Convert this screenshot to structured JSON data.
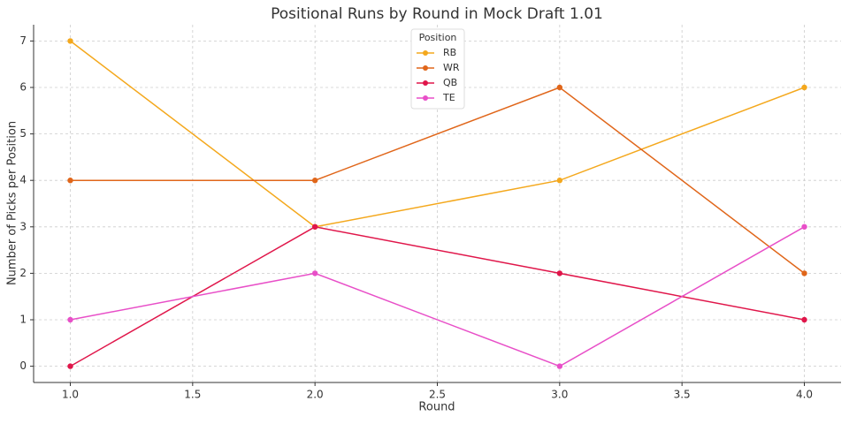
{
  "chart_data": {
    "type": "line",
    "title": "Positional Runs by Round in Mock Draft 1.01",
    "x_label": "Round",
    "y_label": "Number of Picks per Position",
    "x": [
      1,
      2,
      3,
      4
    ],
    "series": [
      {
        "name": "RB",
        "color": "#f4a81d",
        "values": [
          7,
          3,
          4,
          6
        ]
      },
      {
        "name": "WR",
        "color": "#e0661a",
        "values": [
          4,
          4,
          6,
          2
        ]
      },
      {
        "name": "QB",
        "color": "#e0164a",
        "values": [
          0,
          3,
          2,
          1
        ]
      },
      {
        "name": "TE",
        "color": "#e84fc8",
        "values": [
          1,
          2,
          0,
          3
        ]
      }
    ],
    "xlim": [
      0.85,
      4.15
    ],
    "xticks": [
      {
        "value": 1,
        "label": "1.0"
      },
      1.5,
      {
        "value": 2,
        "label": "2.0"
      },
      2.5,
      {
        "value": 3,
        "label": "3.0"
      },
      3.5,
      {
        "value": 4,
        "label": "4.0"
      }
    ],
    "ylim": [
      -0.35,
      7.35
    ],
    "yticks": [
      0,
      1,
      2,
      3,
      4,
      5,
      6,
      7
    ],
    "grid": true,
    "legend_title": "Position",
    "legend_position": "upper center"
  }
}
